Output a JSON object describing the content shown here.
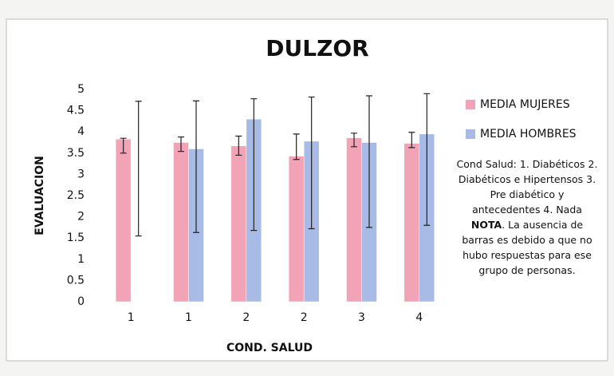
{
  "chart_data": {
    "type": "bar",
    "title": "DULZOR",
    "y_label": "EVALUACION",
    "x_label": "COND. SALUD",
    "categories": [
      "1",
      "1",
      "2",
      "2",
      "3",
      "4"
    ],
    "series": [
      {
        "name": "MEDIA MUJERES",
        "color": "#f2a3b5",
        "values": [
          3.83,
          3.75,
          3.67,
          3.43,
          3.86,
          3.73
        ],
        "error_ranges": [
          [
            3.5,
            3.85
          ],
          [
            3.54,
            3.88
          ],
          [
            3.45,
            3.9
          ],
          [
            3.35,
            3.95
          ],
          [
            3.65,
            3.97
          ],
          [
            3.63,
            3.99
          ]
        ]
      },
      {
        "name": "MEDIA HOMBRES",
        "color": "#a7bbe6",
        "values": [
          null,
          3.6,
          4.3,
          3.78,
          3.75,
          3.95
        ],
        "error_ranges": [
          [
            1.55,
            4.72
          ],
          [
            1.63,
            4.73
          ],
          [
            1.68,
            4.78
          ],
          [
            1.72,
            4.82
          ],
          [
            1.75,
            4.85
          ],
          [
            1.8,
            4.9
          ]
        ]
      }
    ],
    "ylim": [
      0,
      5
    ],
    "yticks": [
      0,
      0.5,
      1,
      1.5,
      2,
      2.5,
      3,
      3.5,
      4,
      4.5,
      5
    ],
    "legend": "right",
    "note": [
      "Cond Salud: 1. Diabéticos 2. Diabéticos e Hipertensos 3. Pre diabético y antecedentes 4. Nada ",
      "NOTA",
      ". La ausencia de barras es debido a que no hubo respuestas para ese grupo de personas."
    ]
  }
}
